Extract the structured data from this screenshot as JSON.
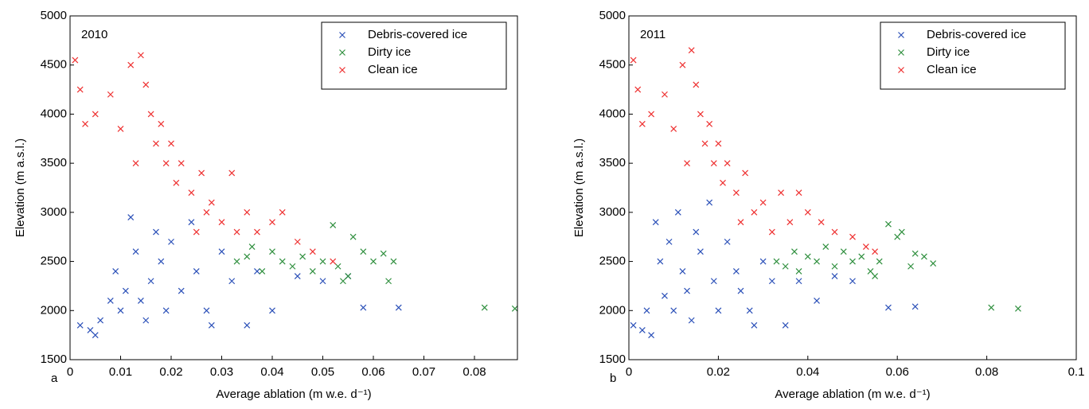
{
  "chart_data": [
    {
      "type": "scatter",
      "annotation": "2010",
      "panel_label": "a",
      "xlabel": "Average ablation (m w.e. d⁻¹)",
      "ylabel": "Elevation (m a.s.l.)",
      "xlim": [
        0,
        0.0885
      ],
      "xticks": [
        0,
        0.01,
        0.02,
        0.03,
        0.04,
        0.05,
        0.06,
        0.07,
        0.08
      ],
      "ylim": [
        1500,
        5000
      ],
      "yticks": [
        1500,
        2000,
        2500,
        3000,
        3500,
        4000,
        4500,
        5000
      ],
      "legend": "upper right",
      "marker": "x",
      "series": [
        {
          "name": "Debris-covered ice",
          "color": "#2b50b8",
          "x": [
            0.002,
            0.004,
            0.005,
            0.006,
            0.008,
            0.009,
            0.01,
            0.011,
            0.012,
            0.013,
            0.014,
            0.015,
            0.016,
            0.017,
            0.018,
            0.019,
            0.02,
            0.022,
            0.024,
            0.025,
            0.027,
            0.028,
            0.03,
            0.032,
            0.035,
            0.037,
            0.04,
            0.045,
            0.05,
            0.055,
            0.058,
            0.065
          ],
          "values": [
            1850,
            1800,
            1750,
            1900,
            2100,
            2400,
            2000,
            2200,
            2950,
            2600,
            2100,
            1900,
            2300,
            2800,
            2500,
            2000,
            2700,
            2200,
            2900,
            2400,
            2000,
            1850,
            2600,
            2300,
            1850,
            2400,
            2000,
            2350,
            2300,
            2350,
            2030,
            2030
          ]
        },
        {
          "name": "Dirty ice",
          "color": "#2f8f3e",
          "x": [
            0.033,
            0.035,
            0.036,
            0.038,
            0.04,
            0.042,
            0.044,
            0.046,
            0.048,
            0.05,
            0.052,
            0.053,
            0.054,
            0.055,
            0.056,
            0.058,
            0.06,
            0.062,
            0.063,
            0.064,
            0.082,
            0.088
          ],
          "values": [
            2500,
            2550,
            2650,
            2400,
            2600,
            2500,
            2450,
            2550,
            2400,
            2500,
            2870,
            2450,
            2300,
            2350,
            2750,
            2600,
            2500,
            2580,
            2300,
            2500,
            2030,
            2020
          ]
        },
        {
          "name": "Clean ice",
          "color": "#ee3030",
          "x": [
            0.001,
            0.002,
            0.003,
            0.005,
            0.008,
            0.01,
            0.012,
            0.013,
            0.014,
            0.015,
            0.016,
            0.017,
            0.018,
            0.019,
            0.02,
            0.021,
            0.022,
            0.024,
            0.025,
            0.026,
            0.027,
            0.028,
            0.03,
            0.032,
            0.033,
            0.035,
            0.037,
            0.04,
            0.042,
            0.045,
            0.048,
            0.052
          ],
          "values": [
            4550,
            4250,
            3900,
            4000,
            4200,
            3850,
            4500,
            3500,
            4600,
            4300,
            4000,
            3700,
            3900,
            3500,
            3700,
            3300,
            3500,
            3200,
            2800,
            3400,
            3000,
            3100,
            2900,
            3400,
            2800,
            3000,
            2800,
            2900,
            3000,
            2700,
            2600,
            2500
          ]
        }
      ]
    },
    {
      "type": "scatter",
      "annotation": "2011",
      "panel_label": "b",
      "xlabel": "Average ablation (m w.e. d⁻¹)",
      "ylabel": "Elevation (m a.s.l.)",
      "xlim": [
        0,
        0.1
      ],
      "xticks": [
        0,
        0.02,
        0.04,
        0.06,
        0.08,
        0.1
      ],
      "ylim": [
        1500,
        5000
      ],
      "yticks": [
        1500,
        2000,
        2500,
        3000,
        3500,
        4000,
        4500,
        5000
      ],
      "legend": "upper right",
      "marker": "x",
      "series": [
        {
          "name": "Debris-covered ice",
          "color": "#2b50b8",
          "x": [
            0.001,
            0.003,
            0.004,
            0.005,
            0.006,
            0.007,
            0.008,
            0.009,
            0.01,
            0.011,
            0.012,
            0.013,
            0.014,
            0.015,
            0.016,
            0.018,
            0.019,
            0.02,
            0.022,
            0.024,
            0.025,
            0.027,
            0.028,
            0.03,
            0.032,
            0.035,
            0.038,
            0.042,
            0.046,
            0.05,
            0.058,
            0.064
          ],
          "values": [
            1850,
            1800,
            2000,
            1750,
            2900,
            2500,
            2150,
            2700,
            2000,
            3000,
            2400,
            2200,
            1900,
            2800,
            2600,
            3100,
            2300,
            2000,
            2700,
            2400,
            2200,
            2000,
            1850,
            2500,
            2300,
            1850,
            2300,
            2100,
            2350,
            2300,
            2030,
            2040
          ]
        },
        {
          "name": "Dirty ice",
          "color": "#2f8f3e",
          "x": [
            0.033,
            0.035,
            0.037,
            0.038,
            0.04,
            0.042,
            0.044,
            0.046,
            0.048,
            0.05,
            0.052,
            0.054,
            0.055,
            0.056,
            0.058,
            0.06,
            0.061,
            0.063,
            0.064,
            0.066,
            0.068,
            0.081,
            0.087
          ],
          "values": [
            2500,
            2450,
            2600,
            2400,
            2550,
            2500,
            2650,
            2450,
            2600,
            2500,
            2550,
            2400,
            2350,
            2500,
            2880,
            2750,
            2800,
            2450,
            2580,
            2550,
            2480,
            2030,
            2020
          ]
        },
        {
          "name": "Clean ice",
          "color": "#ee3030",
          "x": [
            0.001,
            0.002,
            0.003,
            0.005,
            0.008,
            0.01,
            0.012,
            0.013,
            0.014,
            0.015,
            0.016,
            0.017,
            0.018,
            0.019,
            0.02,
            0.021,
            0.022,
            0.024,
            0.025,
            0.026,
            0.028,
            0.03,
            0.032,
            0.034,
            0.036,
            0.038,
            0.04,
            0.043,
            0.046,
            0.05,
            0.053,
            0.055
          ],
          "values": [
            4550,
            4250,
            3900,
            4000,
            4200,
            3850,
            4500,
            3500,
            4650,
            4300,
            4000,
            3700,
            3900,
            3500,
            3700,
            3300,
            3500,
            3200,
            2900,
            3400,
            3000,
            3100,
            2800,
            3200,
            2900,
            3200,
            3000,
            2900,
            2800,
            2750,
            2650,
            2600
          ]
        }
      ]
    }
  ]
}
